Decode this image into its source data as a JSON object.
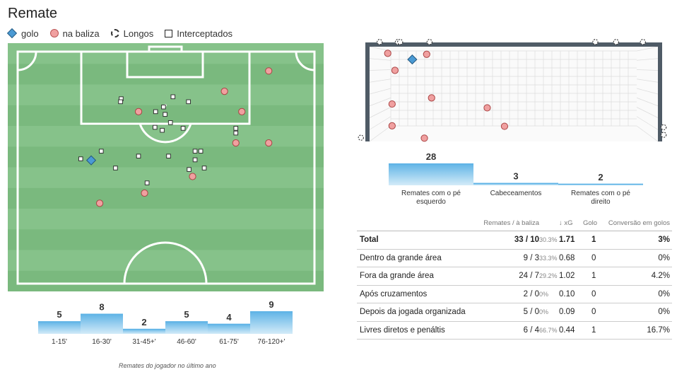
{
  "title": "Remate",
  "legend": [
    {
      "symbol": "diamond",
      "label": "golo"
    },
    {
      "symbol": "circle",
      "label": "na baliza"
    },
    {
      "symbol": "dashed-circle",
      "label": "Longos"
    },
    {
      "symbol": "square",
      "label": "Interceptados"
    }
  ],
  "colors": {
    "pitch_light": "#86c28a",
    "pitch_dark": "#7ab97e",
    "goal_marker": "#4a9ad4",
    "on_target_marker": "#f0a0a0",
    "goal_frame": "#4f5b66",
    "bar_top": "#5eb3e6",
    "bar_bottom": "#d3ebf8"
  },
  "chart_data": [
    {
      "type": "scatter",
      "name": "pitch-shot-map",
      "points": [
        {
          "kind": "goal",
          "x": 0.264,
          "y": 0.472
        },
        {
          "kind": "on_target",
          "x": 0.826,
          "y": 0.112
        },
        {
          "kind": "on_target",
          "x": 0.686,
          "y": 0.194
        },
        {
          "kind": "on_target",
          "x": 0.414,
          "y": 0.276
        },
        {
          "kind": "on_target",
          "x": 0.741,
          "y": 0.276
        },
        {
          "kind": "on_target",
          "x": 0.722,
          "y": 0.402
        },
        {
          "kind": "on_target",
          "x": 0.826,
          "y": 0.402
        },
        {
          "kind": "on_target",
          "x": 0.585,
          "y": 0.537
        },
        {
          "kind": "on_target",
          "x": 0.433,
          "y": 0.604
        },
        {
          "kind": "on_target",
          "x": 0.291,
          "y": 0.645
        },
        {
          "kind": "blocked",
          "x": 0.359,
          "y": 0.224
        },
        {
          "kind": "blocked",
          "x": 0.357,
          "y": 0.236
        },
        {
          "kind": "blocked",
          "x": 0.523,
          "y": 0.216
        },
        {
          "kind": "blocked",
          "x": 0.572,
          "y": 0.236
        },
        {
          "kind": "blocked",
          "x": 0.493,
          "y": 0.257
        },
        {
          "kind": "blocked",
          "x": 0.468,
          "y": 0.276
        },
        {
          "kind": "blocked",
          "x": 0.498,
          "y": 0.287
        },
        {
          "kind": "blocked",
          "x": 0.515,
          "y": 0.32
        },
        {
          "kind": "blocked",
          "x": 0.466,
          "y": 0.339
        },
        {
          "kind": "blocked",
          "x": 0.489,
          "y": 0.351
        },
        {
          "kind": "blocked",
          "x": 0.555,
          "y": 0.343
        },
        {
          "kind": "blocked",
          "x": 0.722,
          "y": 0.343
        },
        {
          "kind": "blocked",
          "x": 0.722,
          "y": 0.362
        },
        {
          "kind": "blocked",
          "x": 0.296,
          "y": 0.435
        },
        {
          "kind": "blocked",
          "x": 0.231,
          "y": 0.466
        },
        {
          "kind": "blocked",
          "x": 0.414,
          "y": 0.455
        },
        {
          "kind": "blocked",
          "x": 0.509,
          "y": 0.455
        },
        {
          "kind": "blocked",
          "x": 0.593,
          "y": 0.435
        },
        {
          "kind": "blocked",
          "x": 0.611,
          "y": 0.435
        },
        {
          "kind": "blocked",
          "x": 0.593,
          "y": 0.47
        },
        {
          "kind": "blocked",
          "x": 0.341,
          "y": 0.503
        },
        {
          "kind": "blocked",
          "x": 0.574,
          "y": 0.509
        },
        {
          "kind": "blocked",
          "x": 0.622,
          "y": 0.503
        },
        {
          "kind": "blocked",
          "x": 0.441,
          "y": 0.563
        }
      ]
    },
    {
      "type": "scatter",
      "name": "goal-placement-map",
      "points": [
        {
          "kind": "on_target",
          "x": 0.063,
          "y": 0.07
        },
        {
          "kind": "goal",
          "x": 0.148,
          "y": 0.135
        },
        {
          "kind": "on_target",
          "x": 0.198,
          "y": 0.08
        },
        {
          "kind": "on_target",
          "x": 0.088,
          "y": 0.25
        },
        {
          "kind": "on_target",
          "x": 0.215,
          "y": 0.54
        },
        {
          "kind": "on_target",
          "x": 0.078,
          "y": 0.605
        },
        {
          "kind": "on_target",
          "x": 0.408,
          "y": 0.645
        },
        {
          "kind": "on_target",
          "x": 0.468,
          "y": 0.84
        },
        {
          "kind": "on_target",
          "x": 0.078,
          "y": 0.835
        },
        {
          "kind": "on_target",
          "x": 0.19,
          "y": 0.965
        },
        {
          "kind": "off_target",
          "x": 0.035,
          "y": -0.05
        },
        {
          "kind": "off_target",
          "x": 0.098,
          "y": -0.05
        },
        {
          "kind": "off_target",
          "x": 0.106,
          "y": -0.05
        },
        {
          "kind": "off_target",
          "x": 0.208,
          "y": -0.05
        },
        {
          "kind": "off_target",
          "x": 0.783,
          "y": -0.05
        },
        {
          "kind": "off_target",
          "x": 0.855,
          "y": -0.05
        },
        {
          "kind": "off_target",
          "x": 0.948,
          "y": -0.05
        },
        {
          "kind": "off_target",
          "x": -0.03,
          "y": 0.96
        },
        {
          "kind": "off_target",
          "x": 1.02,
          "y": 0.85
        },
        {
          "kind": "off_target",
          "x": 1.02,
          "y": 0.93
        }
      ]
    },
    {
      "type": "bar",
      "name": "shots-by-body-part",
      "categories": [
        "Remates com o pé esquerdo",
        "Cabeceamentos",
        "Remates com o pé direito"
      ],
      "values": [
        28,
        3,
        2
      ]
    },
    {
      "type": "bar",
      "name": "shots-by-minute",
      "categories": [
        "1-15'",
        "16-30'",
        "31-45+'",
        "46-60'",
        "61-75'",
        "76-120+'"
      ],
      "values": [
        5,
        8,
        2,
        5,
        4,
        9
      ]
    },
    {
      "type": "table",
      "name": "shot-stats",
      "columns": [
        "",
        "Remates / à baliza",
        "↓ xG",
        "Golo",
        "Conversão em golos"
      ],
      "rows": [
        {
          "label": "Total",
          "shots": "33 / 10",
          "pct": "30.3%",
          "xg": "1.71",
          "goals": "1",
          "conversion": "3%"
        },
        {
          "label": "Dentro da grande área",
          "shots": "9 / 3",
          "pct": "33.3%",
          "xg": "0.68",
          "goals": "0",
          "conversion": "0%"
        },
        {
          "label": "Fora da grande área",
          "shots": "24 / 7",
          "pct": "29.2%",
          "xg": "1.02",
          "goals": "1",
          "conversion": "4.2%"
        },
        {
          "label": "Após cruzamentos",
          "shots": "2 / 0",
          "pct": "0%",
          "xg": "0.10",
          "goals": "0",
          "conversion": "0%"
        },
        {
          "label": "Depois da jogada organizada",
          "shots": "5 / 0",
          "pct": "0%",
          "xg": "0.09",
          "goals": "0",
          "conversion": "0%"
        },
        {
          "label": "Livres diretos e penáltis",
          "shots": "6 / 4",
          "pct": "66.7%",
          "xg": "0.44",
          "goals": "1",
          "conversion": "16.7%"
        }
      ]
    }
  ],
  "caption": "Remates do jogador no último ano"
}
